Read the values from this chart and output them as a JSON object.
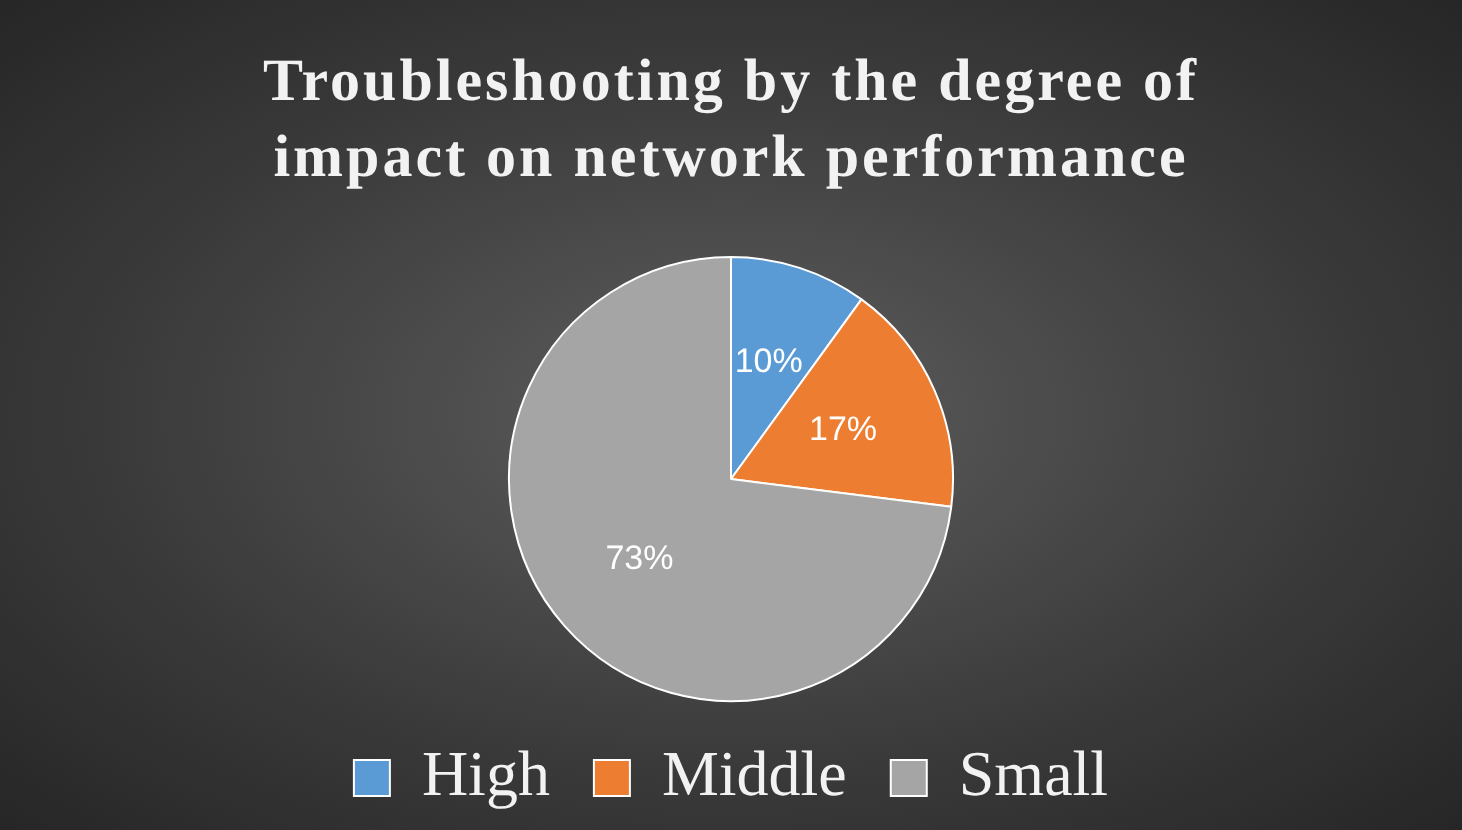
{
  "chart_data": {
    "type": "pie",
    "title": "Troubleshooting by the degree of impact on network performance",
    "categories": [
      "High",
      "Middle",
      "Small"
    ],
    "values": [
      10,
      17,
      73
    ],
    "value_labels": [
      "10%",
      "17%",
      "73%"
    ],
    "colors": [
      "#5b9bd5",
      "#ed7d31",
      "#a5a5a5"
    ],
    "legend": "bottom"
  }
}
